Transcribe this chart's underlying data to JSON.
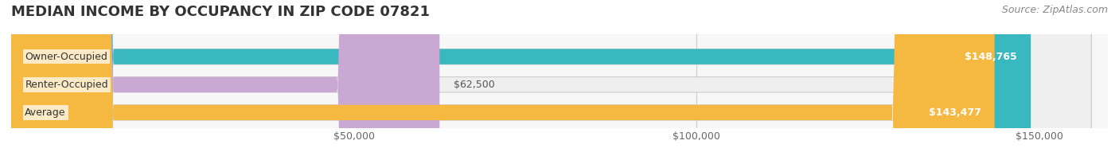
{
  "title": "MEDIAN INCOME BY OCCUPANCY IN ZIP CODE 07821",
  "source": "Source: ZipAtlas.com",
  "categories": [
    "Owner-Occupied",
    "Renter-Occupied",
    "Average"
  ],
  "values": [
    148765,
    62500,
    143477
  ],
  "bar_colors": [
    "#3ab8bf",
    "#c9a8d4",
    "#f5b942"
  ],
  "bar_bg_color": "#f0f0f0",
  "value_labels": [
    "$148,765",
    "$62,500",
    "$143,477"
  ],
  "x_ticks": [
    0,
    50000,
    100000,
    150000
  ],
  "x_tick_labels": [
    "$50,000",
    "$100,000",
    "$150,000"
  ],
  "x_max": 160000,
  "title_fontsize": 13,
  "source_fontsize": 9,
  "label_fontsize": 9,
  "tick_fontsize": 9,
  "bg_color": "#ffffff",
  "plot_bg_color": "#f7f7f7"
}
